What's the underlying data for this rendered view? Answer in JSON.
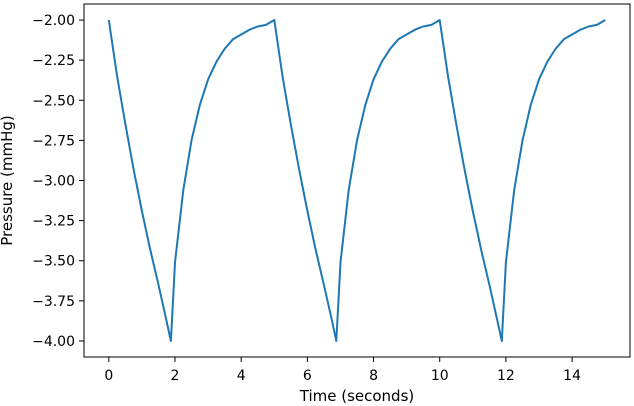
{
  "chart_data": {
    "type": "line",
    "title": "",
    "xlabel": "Time (seconds)",
    "ylabel": "Pressure (mmHg)",
    "xlim": [
      -0.75,
      15.75
    ],
    "ylim": [
      -4.1,
      -1.9
    ],
    "grid": false,
    "x_ticks": [
      0,
      2,
      4,
      6,
      8,
      10,
      12,
      14
    ],
    "x_tick_labels": [
      "0",
      "2",
      "4",
      "6",
      "8",
      "10",
      "12",
      "14"
    ],
    "y_ticks": [
      -2.0,
      -2.25,
      -2.5,
      -2.75,
      -3.0,
      -3.25,
      -3.5,
      -3.75,
      -4.0
    ],
    "y_tick_labels": [
      "−2.00",
      "−2.25",
      "−2.50",
      "−2.75",
      "−3.00",
      "−3.25",
      "−3.50",
      "−3.75",
      "−4.00"
    ],
    "series": [
      {
        "color": "#1f77b4",
        "x": [
          0,
          0.25,
          0.5,
          0.75,
          1.0,
          1.25,
          1.5,
          1.75,
          1.875,
          2.0,
          2.25,
          2.5,
          2.75,
          3.0,
          3.25,
          3.5,
          3.75,
          4.0,
          4.25,
          4.5,
          4.75,
          5.0,
          5.25,
          5.5,
          5.75,
          6.0,
          6.25,
          6.5,
          6.75,
          6.875,
          7.0,
          7.25,
          7.5,
          7.75,
          8.0,
          8.25,
          8.5,
          8.75,
          9.0,
          9.25,
          9.5,
          9.75,
          10.0,
          10.25,
          10.5,
          10.75,
          11.0,
          11.25,
          11.5,
          11.75,
          11.875,
          12.0,
          12.25,
          12.5,
          12.75,
          13.0,
          13.25,
          13.5,
          13.75,
          14.0,
          14.25,
          14.5,
          14.75,
          15.0
        ],
        "y": [
          -2.0,
          -2.35,
          -2.65,
          -2.93,
          -3.19,
          -3.43,
          -3.65,
          -3.88,
          -4.0,
          -3.51,
          -3.06,
          -2.75,
          -2.53,
          -2.37,
          -2.26,
          -2.18,
          -2.12,
          -2.09,
          -2.06,
          -2.04,
          -2.03,
          -2.0,
          -2.35,
          -2.65,
          -2.93,
          -3.19,
          -3.43,
          -3.65,
          -3.88,
          -4.0,
          -3.51,
          -3.06,
          -2.75,
          -2.53,
          -2.37,
          -2.26,
          -2.18,
          -2.12,
          -2.09,
          -2.06,
          -2.04,
          -2.03,
          -2.0,
          -2.35,
          -2.65,
          -2.93,
          -3.19,
          -3.43,
          -3.65,
          -3.88,
          -4.0,
          -3.51,
          -3.06,
          -2.75,
          -2.53,
          -2.37,
          -2.26,
          -2.18,
          -2.12,
          -2.09,
          -2.06,
          -2.04,
          -2.03,
          -2.0
        ]
      }
    ]
  }
}
